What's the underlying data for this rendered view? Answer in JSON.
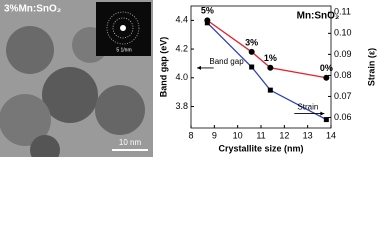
{
  "image": {
    "label": "3%Mn:SnO₂",
    "inset_scale": "5 1/nm",
    "scale_bar": "10 nm"
  },
  "chart_data": {
    "type": "line",
    "title": "Mn:SnO₂",
    "x_label": "Crystallite size (nm)",
    "y_label": "Band gap (eV)",
    "y2_label": "Strain (ε)",
    "x": [
      8.7,
      10.6,
      11.4,
      13.8
    ],
    "series": [
      {
        "name": "Band gap",
        "color": "#e8202a",
        "marker": "circle",
        "values": [
          4.4,
          4.18,
          4.07,
          4.0
        ],
        "labels": [
          "5%",
          "3%",
          "1%",
          "0%"
        ]
      },
      {
        "name": "Strain",
        "color": "#2b3fbf",
        "marker": "square",
        "axis": "y2",
        "values": [
          0.105,
          0.084,
          0.073,
          0.059
        ]
      }
    ],
    "xlim": [
      8,
      14
    ],
    "xticks": [
      8,
      9,
      10,
      11,
      12,
      13,
      14
    ],
    "ylim": [
      3.65,
      4.5
    ],
    "yticks": [
      3.8,
      {
        "value": 4,
        "label": "4.0"
      },
      4.2,
      4.4
    ],
    "y2lim": [
      0.055,
      0.113
    ],
    "y2ticks": [
      0.06,
      0.07,
      0.08,
      0.09,
      {
        "value": 0.1,
        "label": "0.10"
      },
      0.11
    ]
  }
}
